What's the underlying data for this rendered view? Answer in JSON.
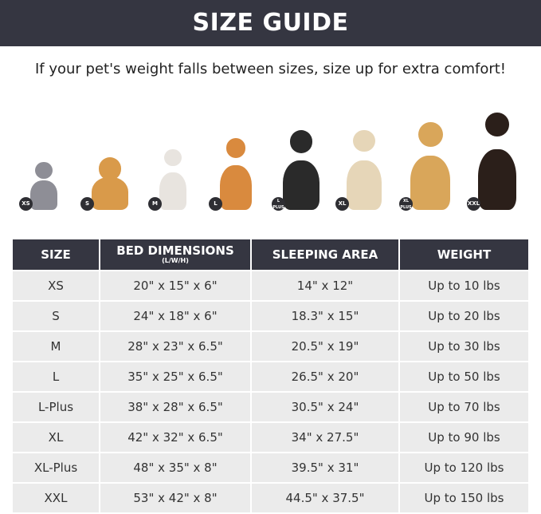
{
  "title": "SIZE GUIDE",
  "tip": "If your pet's weight falls between sizes, size up for extra comfort!",
  "pets": [
    {
      "badge": "XS",
      "color": "#8e8e96"
    },
    {
      "badge": "S",
      "color": "#d99a4a"
    },
    {
      "badge": "M",
      "color": "#e8e4df"
    },
    {
      "badge": "L",
      "color": "#d98a3e"
    },
    {
      "badge": "L PLUS",
      "color": "#2a2a2a"
    },
    {
      "badge": "XL",
      "color": "#e6d6b8"
    },
    {
      "badge": "XL PLUS",
      "color": "#d9a65a"
    },
    {
      "badge": "XXL",
      "color": "#2b1f1a"
    }
  ],
  "table": {
    "headers": {
      "size": "SIZE",
      "bed": "BED DIMENSIONS",
      "bed_sub": "(L/W/H)",
      "sleep": "SLEEPING AREA",
      "weight": "WEIGHT"
    },
    "rows": [
      [
        "XS",
        "20\" x 15\" x 6\"",
        "14\" x 12\"",
        "Up to 10 lbs"
      ],
      [
        "S",
        "24\" x 18\" x 6\"",
        "18.3\" x 15\"",
        "Up to 20 lbs"
      ],
      [
        "M",
        "28\" x 23\" x 6.5\"",
        "20.5\" x 19\"",
        "Up to 30 lbs"
      ],
      [
        "L",
        "35\" x 25\" x 6.5\"",
        "26.5\" x 20\"",
        "Up to 50 lbs"
      ],
      [
        "L-Plus",
        "38\" x 28\" x 6.5\"",
        "30.5\" x 24\"",
        "Up to 70 lbs"
      ],
      [
        "XL",
        "42\" x 32\" x 6.5\"",
        "34\" x 27.5\"",
        "Up to 90 lbs"
      ],
      [
        "XL-Plus",
        "48\" x 35\" x 8\"",
        "39.5\" x 31\"",
        "Up to 120 lbs"
      ],
      [
        "XXL",
        "53\" x 42\" x 8\"",
        "44.5\" x 37.5\"",
        "Up to 150 lbs"
      ]
    ]
  }
}
